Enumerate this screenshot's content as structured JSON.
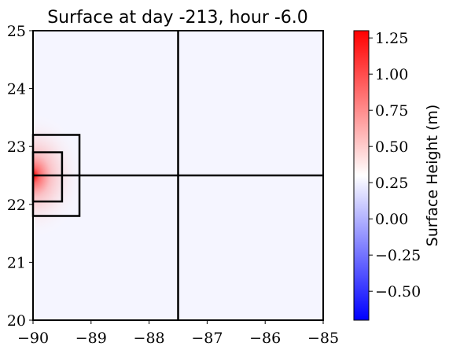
{
  "chart_data": {
    "type": "heatmap",
    "title": "Surface at day -213, hour -6.0",
    "xlabel": "",
    "ylabel": "",
    "xlim": [
      -90,
      -85
    ],
    "ylim": [
      20,
      25
    ],
    "x_ticks": [
      "−90",
      "−89",
      "−88",
      "−87",
      "−86",
      "−85"
    ],
    "x_tick_values": [
      -90,
      -89,
      -88,
      -87,
      -86,
      -85
    ],
    "y_ticks": [
      "20",
      "21",
      "22",
      "23",
      "24",
      "25"
    ],
    "y_tick_values": [
      20,
      21,
      22,
      23,
      24,
      25
    ],
    "colorbar": {
      "label": "Surface Height (m)",
      "colormap": "bwr",
      "range": [
        -0.7,
        1.3
      ],
      "ticks": [
        "−0.50",
        "−0.25",
        "0.00",
        "0.25",
        "0.50",
        "0.75",
        "1.00",
        "1.25"
      ],
      "tick_values": [
        -0.5,
        -0.25,
        0.0,
        0.25,
        0.5,
        0.75,
        1.0,
        1.25
      ]
    },
    "field": {
      "background_value": 0.26,
      "peak": {
        "lon": -90.0,
        "lat": 22.5,
        "value": 1.25
      },
      "anomaly_halfwidth_lon": 0.9,
      "anomaly_halfwidth_lat": 1.1
    },
    "overlay_lines": [
      {
        "name": "vertical-line",
        "x": [
          -87.5,
          -87.5
        ],
        "y": [
          20,
          25
        ]
      },
      {
        "name": "horizontal-line",
        "x": [
          -90,
          -85
        ],
        "y": [
          22.5,
          22.5
        ]
      }
    ],
    "overlay_boxes": [
      {
        "name": "outer-box",
        "x": [
          -90,
          -89.2
        ],
        "y": [
          21.8,
          23.2
        ]
      },
      {
        "name": "inner-box",
        "x": [
          -90,
          -89.5
        ],
        "y": [
          22.05,
          22.9
        ]
      }
    ]
  }
}
